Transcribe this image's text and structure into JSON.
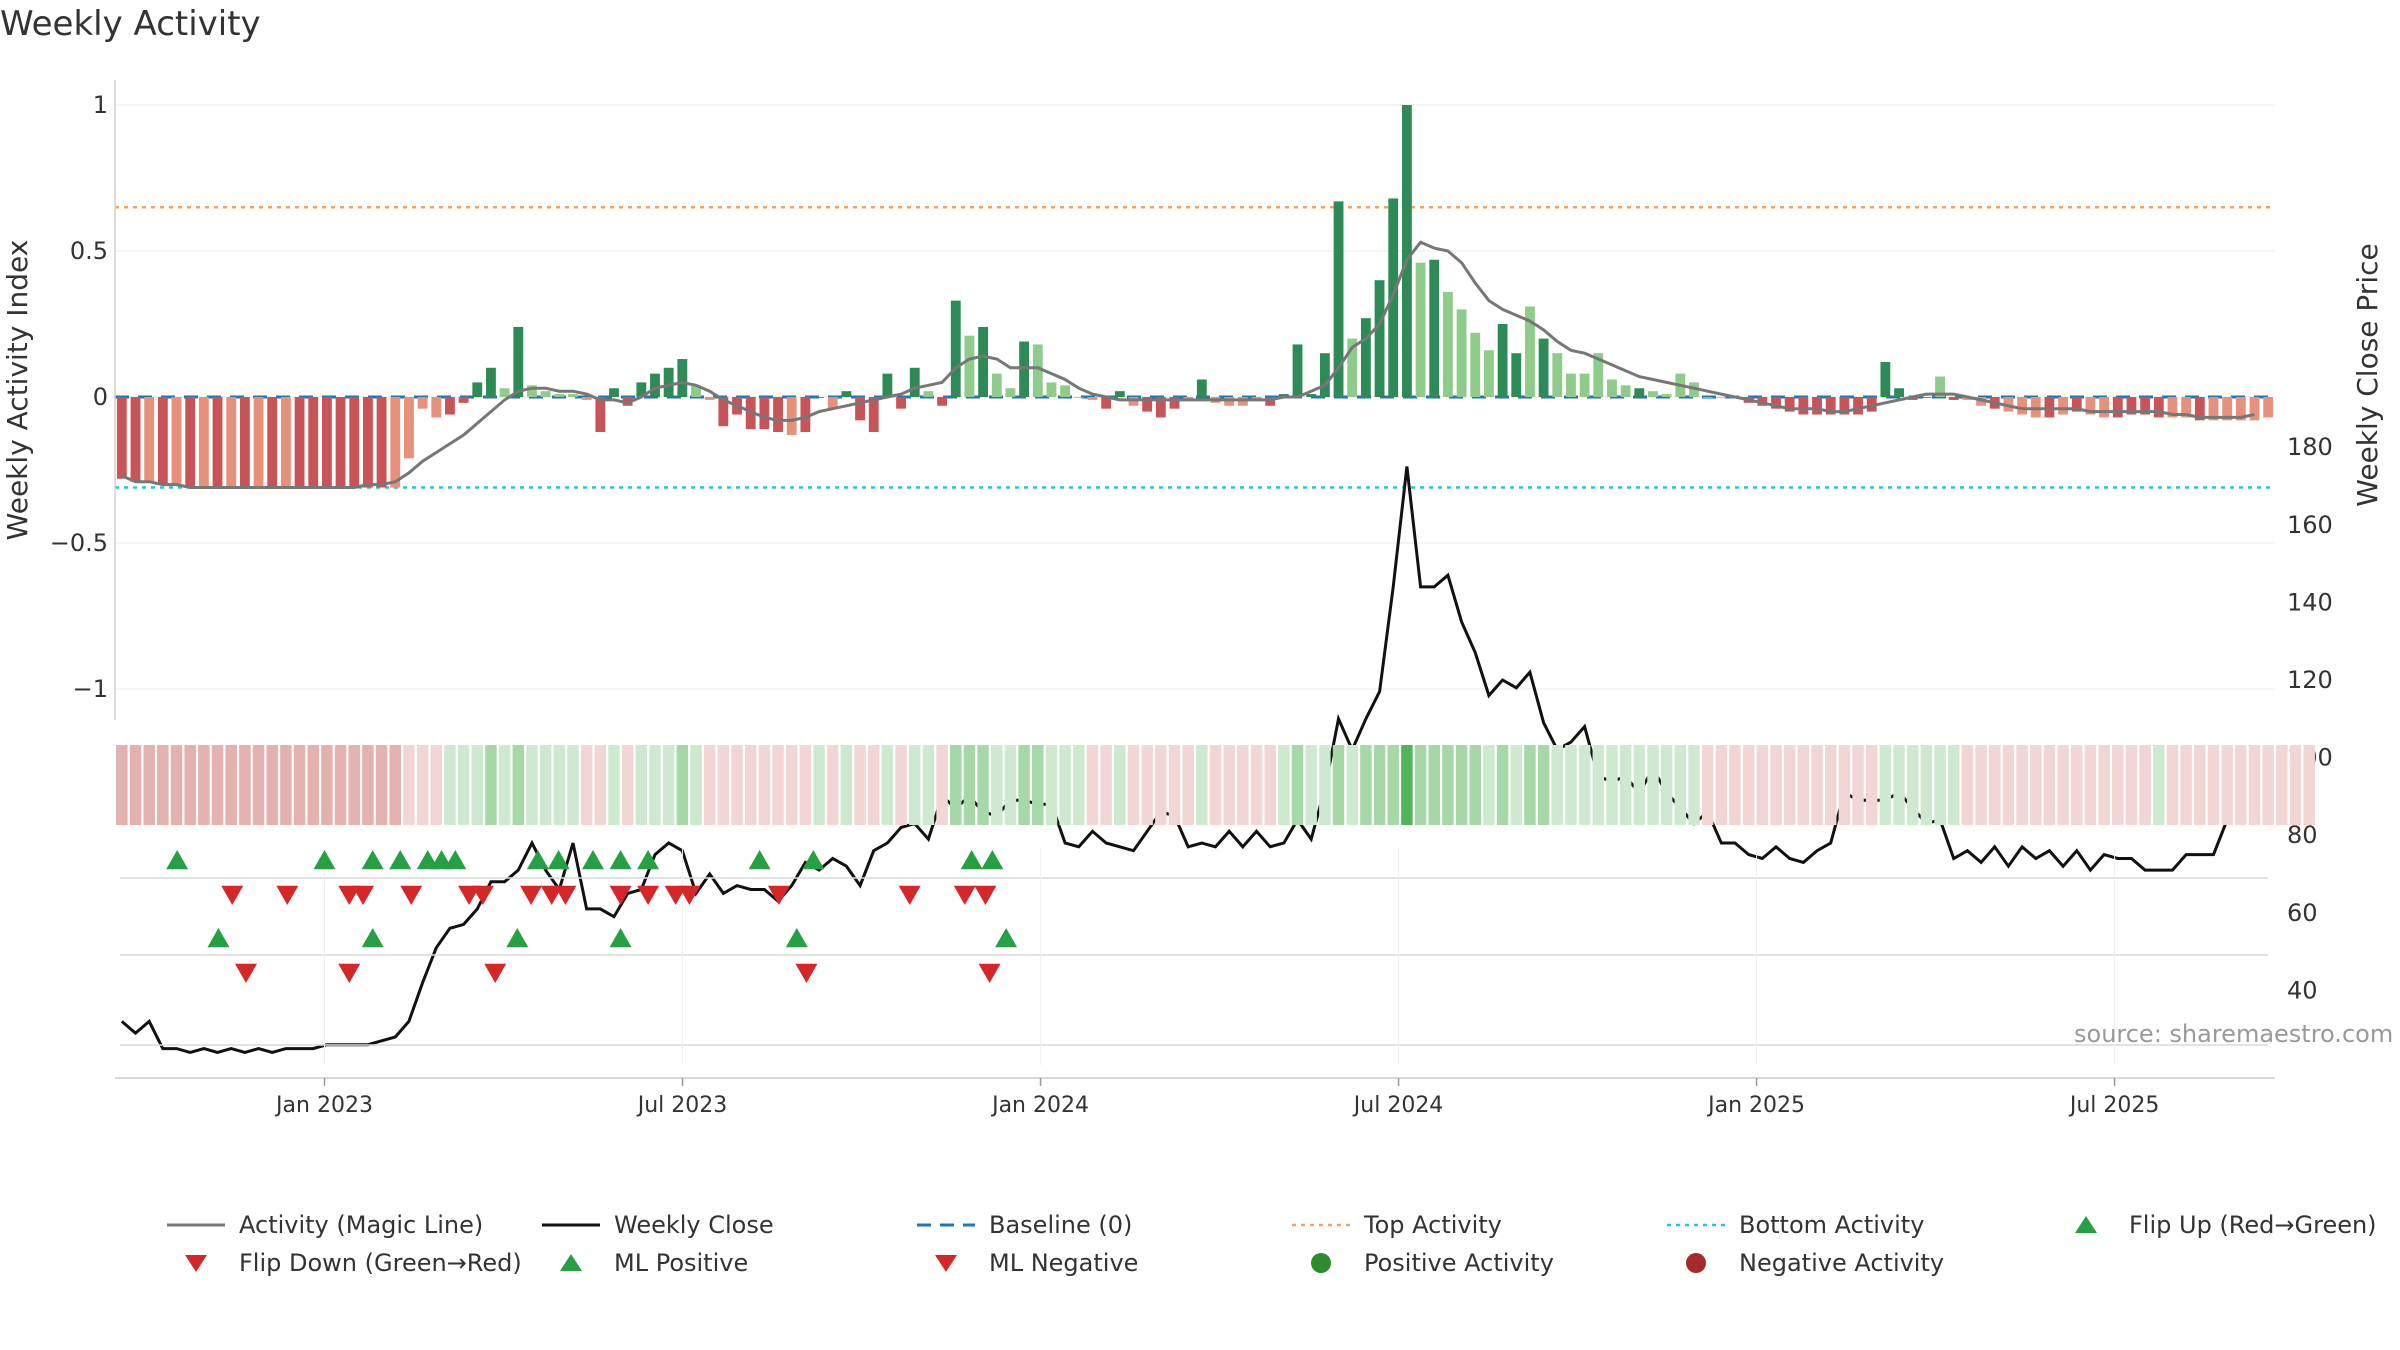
{
  "title": "Weekly Activity",
  "source": "source: sharemaestro.com",
  "colors": {
    "dark_green": "#2e8b57",
    "light_green": "#8fcb8b",
    "dark_red": "#c85458",
    "light_red": "#e8917a",
    "magic_line": "#777777",
    "close_line": "#111111",
    "baseline": "#1f77b4",
    "top_line": "#f4a460",
    "bottom_line": "#26c6da",
    "marker_green": "#27a045",
    "marker_red": "#d62728"
  },
  "legend": [
    {
      "label": "Activity (Magic Line)",
      "icon": "solid-gray-line"
    },
    {
      "label": "Weekly Close",
      "icon": "solid-black-line"
    },
    {
      "label": "Baseline (0)",
      "icon": "dashed-blue-line"
    },
    {
      "label": "Top Activity",
      "icon": "dotted-orange-line"
    },
    {
      "label": "Bottom Activity",
      "icon": "dotted-cyan-line"
    },
    {
      "label": "Flip Up (Red→Green)",
      "icon": "green-up-triangle"
    },
    {
      "label": "Flip Down (Green→Red)",
      "icon": "red-down-triangle"
    },
    {
      "label": "ML Positive",
      "icon": "green-up-triangle"
    },
    {
      "label": "ML Negative",
      "icon": "red-down-triangle"
    },
    {
      "label": "Positive Activity",
      "icon": "green-dot"
    },
    {
      "label": "Negative Activity",
      "icon": "red-dot"
    }
  ],
  "chart_data": {
    "type": "bar",
    "title": "Weekly Activity",
    "ylabel": "Weekly Activity Index",
    "y2label": "Weekly Close Price",
    "ylim": [
      -1.1,
      1.05
    ],
    "y2lim": [
      20,
      185
    ],
    "yticks": [
      -1,
      -0.5,
      0,
      0.5,
      1
    ],
    "ytick_labels": [
      "−1",
      "−0.5",
      "0",
      "0.5",
      "1"
    ],
    "y2ticks": [
      40,
      60,
      80,
      100,
      120,
      140,
      160,
      180
    ],
    "y2tick_labels": [
      "40",
      "60",
      "80",
      "100",
      "120",
      "140",
      "160",
      "180"
    ],
    "xlim": [
      -15.0,
      141.0
    ],
    "x_unit": "weeks since Jan 2023",
    "xticks": [
      0,
      26,
      52,
      78,
      104,
      130
    ],
    "xtick_labels": [
      "Jan 2023",
      "Jul 2023",
      "Jan 2024",
      "Jul 2024",
      "Jan 2025",
      "Jul 2025"
    ],
    "top_activity": 0.65,
    "bottom_activity": -0.31,
    "baseline": 0,
    "activity": [
      -0.28,
      -0.29,
      -0.29,
      -0.3,
      -0.3,
      -0.31,
      -0.31,
      -0.31,
      -0.31,
      -0.31,
      -0.31,
      -0.31,
      -0.31,
      -0.31,
      -0.31,
      -0.31,
      -0.31,
      -0.31,
      -0.31,
      -0.31,
      -0.31,
      -0.21,
      -0.04,
      -0.07,
      -0.06,
      -0.02,
      0.05,
      0.1,
      0.03,
      0.24,
      0.04,
      0.02,
      0.01,
      0.01,
      -0.01,
      -0.12,
      0.03,
      -0.03,
      0.05,
      0.08,
      0.1,
      0.13,
      0.04,
      -0.01,
      -0.1,
      -0.06,
      -0.11,
      -0.11,
      -0.12,
      -0.13,
      -0.12,
      0.0,
      -0.04,
      0.02,
      -0.08,
      -0.12,
      0.08,
      -0.04,
      0.1,
      0.02,
      -0.03,
      0.33,
      0.21,
      0.24,
      0.08,
      0.03,
      0.19,
      0.18,
      0.05,
      0.04,
      0.0,
      -0.01,
      -0.04,
      0.02,
      -0.03,
      -0.05,
      -0.07,
      -0.04,
      -0.01,
      0.06,
      -0.02,
      -0.03,
      -0.03,
      -0.01,
      -0.03,
      0.01,
      0.18,
      0.01,
      0.15,
      0.67,
      0.2,
      0.27,
      0.4,
      0.68,
      1.0,
      0.46,
      0.47,
      0.36,
      0.3,
      0.22,
      0.16,
      0.25,
      0.15,
      0.31,
      0.2,
      0.15,
      0.08,
      0.08,
      0.15,
      0.06,
      0.04,
      0.03,
      0.02,
      0.01,
      0.08,
      0.05,
      0.0,
      0.0,
      0.0,
      -0.02,
      -0.03,
      -0.04,
      -0.05,
      -0.06,
      -0.06,
      -0.06,
      -0.06,
      -0.06,
      -0.05,
      0.12,
      0.03,
      -0.01,
      0.0,
      0.07,
      -0.01,
      -0.01,
      -0.03,
      -0.04,
      -0.05,
      -0.06,
      -0.07,
      -0.07,
      -0.06,
      -0.05,
      -0.06,
      -0.07,
      -0.07,
      -0.06,
      -0.06,
      -0.07,
      -0.07,
      -0.07,
      -0.08,
      -0.08,
      -0.08,
      -0.08,
      -0.08,
      -0.07
    ],
    "activity_strength": [
      "dark",
      "dark",
      "light",
      "dark",
      "light",
      "dark",
      "light",
      "dark",
      "light",
      "dark",
      "light",
      "dark",
      "light",
      "dark",
      "dark",
      "dark",
      "dark",
      "dark",
      "dark",
      "dark",
      "light",
      "light",
      "light",
      "light",
      "dark",
      "dark",
      "dark",
      "dark",
      "light",
      "dark",
      "light",
      "light",
      "light",
      "light",
      "light",
      "dark",
      "dark",
      "dark",
      "dark",
      "dark",
      "dark",
      "dark",
      "light",
      "light",
      "dark",
      "dark",
      "dark",
      "dark",
      "dark",
      "light",
      "dark",
      "dark",
      "light",
      "dark",
      "dark",
      "dark",
      "dark",
      "dark",
      "dark",
      "light",
      "dark",
      "dark",
      "light",
      "dark",
      "light",
      "light",
      "dark",
      "light",
      "light",
      "light",
      "light",
      "light",
      "dark",
      "dark",
      "light",
      "dark",
      "dark",
      "dark",
      "light",
      "dark",
      "light",
      "light",
      "light",
      "light",
      "dark",
      "dark",
      "dark",
      "dark",
      "dark",
      "dark",
      "light",
      "dark",
      "dark",
      "dark",
      "dark",
      "light",
      "dark",
      "light",
      "light",
      "light",
      "light",
      "dark",
      "dark",
      "light",
      "dark",
      "light",
      "light",
      "light",
      "light",
      "light",
      "light",
      "dark",
      "light",
      "light",
      "light",
      "light",
      "light",
      "light",
      "light",
      "dark",
      "dark",
      "dark",
      "dark",
      "dark",
      "dark",
      "dark",
      "dark",
      "dark",
      "dark",
      "dark",
      "dark",
      "dark",
      "dark",
      "light",
      "dark",
      "light",
      "light",
      "dark",
      "light",
      "light",
      "light",
      "dark",
      "light",
      "dark",
      "light",
      "light",
      "dark",
      "dark",
      "dark",
      "dark",
      "light",
      "light",
      "dark",
      "light",
      "light",
      "light",
      "light",
      "light",
      "light",
      "light",
      "dark"
    ],
    "magic_line": [
      -0.27,
      -0.29,
      -0.29,
      -0.3,
      -0.3,
      -0.31,
      -0.31,
      -0.31,
      -0.31,
      -0.31,
      -0.31,
      -0.31,
      -0.31,
      -0.31,
      -0.31,
      -0.31,
      -0.31,
      -0.31,
      -0.3,
      -0.3,
      -0.29,
      -0.26,
      -0.22,
      -0.19,
      -0.16,
      -0.13,
      -0.09,
      -0.05,
      -0.01,
      0.02,
      0.03,
      0.03,
      0.02,
      0.02,
      0.01,
      -0.01,
      -0.01,
      -0.02,
      0.0,
      0.03,
      0.04,
      0.05,
      0.04,
      0.02,
      -0.01,
      -0.03,
      -0.05,
      -0.07,
      -0.08,
      -0.08,
      -0.07,
      -0.05,
      -0.04,
      -0.03,
      -0.02,
      -0.01,
      0.0,
      0.01,
      0.03,
      0.04,
      0.05,
      0.1,
      0.13,
      0.14,
      0.13,
      0.1,
      0.1,
      0.1,
      0.08,
      0.06,
      0.03,
      0.01,
      0.0,
      -0.01,
      -0.01,
      -0.01,
      -0.01,
      -0.01,
      -0.01,
      -0.01,
      -0.01,
      -0.01,
      -0.01,
      -0.01,
      -0.01,
      0.0,
      0.0,
      0.02,
      0.04,
      0.1,
      0.17,
      0.2,
      0.25,
      0.35,
      0.47,
      0.53,
      0.51,
      0.5,
      0.46,
      0.39,
      0.33,
      0.3,
      0.28,
      0.26,
      0.23,
      0.19,
      0.16,
      0.15,
      0.13,
      0.11,
      0.09,
      0.07,
      0.06,
      0.05,
      0.04,
      0.03,
      0.02,
      0.01,
      0.0,
      -0.01,
      -0.02,
      -0.03,
      -0.04,
      -0.04,
      -0.04,
      -0.05,
      -0.05,
      -0.04,
      -0.03,
      -0.02,
      -0.01,
      0.0,
      0.01,
      0.01,
      0.01,
      0.0,
      -0.01,
      -0.02,
      -0.03,
      -0.04,
      -0.04,
      -0.04,
      -0.04,
      -0.04,
      -0.05,
      -0.05,
      -0.05,
      -0.05,
      -0.05,
      -0.05,
      -0.06,
      -0.06,
      -0.07,
      -0.07,
      -0.07,
      -0.07,
      -0.06
    ],
    "weekly_close": [
      32,
      29,
      32,
      25,
      25,
      24,
      25,
      24,
      25,
      24,
      25,
      24,
      25,
      25,
      25,
      26,
      26,
      26,
      26,
      27,
      28,
      32,
      42,
      51,
      56,
      57,
      61,
      68,
      68,
      71,
      78,
      71,
      66,
      78,
      61,
      61,
      59,
      65,
      66,
      75,
      78,
      76,
      65,
      70,
      65,
      67,
      66,
      66,
      63,
      67,
      73,
      71,
      74,
      72,
      67,
      76,
      78,
      82,
      83,
      79,
      90,
      87,
      90,
      86,
      85,
      89,
      89,
      88,
      88,
      78,
      77,
      81,
      78,
      77,
      76,
      81,
      86,
      85,
      77,
      78,
      77,
      81,
      77,
      81,
      77,
      78,
      84,
      79,
      92,
      110,
      102,
      110,
      117,
      144,
      175,
      144,
      144,
      147,
      135,
      127,
      116,
      120,
      118,
      122,
      109,
      102,
      104,
      108,
      95,
      94,
      95,
      91,
      97,
      91,
      87,
      83,
      86,
      78,
      78,
      75,
      74,
      77,
      74,
      73,
      76,
      78,
      91,
      89,
      89,
      89,
      91,
      87,
      83,
      84,
      74,
      76,
      73,
      77,
      72,
      77,
      74,
      76,
      72,
      76,
      71,
      75,
      74,
      74,
      71,
      71,
      71,
      75,
      75,
      75,
      84
    ],
    "heatmap_strip": [
      "strong-negative",
      "strong-negative",
      "strong-negative",
      "strong-negative",
      "strong-negative",
      "strong-negative",
      "strong-negative",
      "strong-negative",
      "strong-negative",
      "strong-negative",
      "strong-negative",
      "strong-negative",
      "strong-negative",
      "strong-negative",
      "strong-negative",
      "strong-negative",
      "strong-negative",
      "strong-negative",
      "strong-negative",
      "strong-negative",
      "strong-negative",
      "weak-negative",
      "weak-negative",
      "weak-negative",
      "weak-positive",
      "weak-positive",
      "weak-positive",
      "positive",
      "weak-positive",
      "positive",
      "weak-positive",
      "weak-positive",
      "weak-positive",
      "weak-positive",
      "weak-negative",
      "weak-negative",
      "weak-positive",
      "weak-negative",
      "weak-positive",
      "weak-positive",
      "weak-positive",
      "positive",
      "weak-positive",
      "weak-negative",
      "weak-negative",
      "weak-negative",
      "weak-negative",
      "weak-negative",
      "weak-negative",
      "weak-negative",
      "weak-negative",
      "weak-positive",
      "weak-negative",
      "weak-positive",
      "weak-negative",
      "weak-negative",
      "weak-positive",
      "weak-negative",
      "weak-positive",
      "weak-positive",
      "weak-negative",
      "positive",
      "positive",
      "positive",
      "weak-positive",
      "weak-positive",
      "positive",
      "positive",
      "weak-positive",
      "weak-positive",
      "weak-positive",
      "weak-negative",
      "weak-negative",
      "weak-positive",
      "weak-negative",
      "weak-negative",
      "weak-negative",
      "weak-negative",
      "weak-negative",
      "weak-positive",
      "weak-negative",
      "weak-negative",
      "weak-negative",
      "weak-negative",
      "weak-negative",
      "weak-positive",
      "positive",
      "weak-positive",
      "weak-positive",
      "positive",
      "weak-positive",
      "positive",
      "positive",
      "positive",
      "strong-positive",
      "positive",
      "positive",
      "positive",
      "positive",
      "positive",
      "weak-positive",
      "positive",
      "weak-positive",
      "positive",
      "positive",
      "weak-positive",
      "weak-positive",
      "weak-positive",
      "weak-positive",
      "weak-positive",
      "weak-positive",
      "weak-positive",
      "weak-positive",
      "weak-positive",
      "weak-positive",
      "weak-positive",
      "weak-negative",
      "weak-negative",
      "weak-negative",
      "weak-negative",
      "weak-negative",
      "weak-negative",
      "weak-negative",
      "weak-negative",
      "weak-negative",
      "weak-negative",
      "weak-negative",
      "weak-negative",
      "weak-negative",
      "weak-positive",
      "weak-positive",
      "weak-positive",
      "weak-positive",
      "weak-positive",
      "weak-positive",
      "weak-negative",
      "weak-negative",
      "weak-negative",
      "weak-negative",
      "weak-negative",
      "weak-negative",
      "weak-negative",
      "weak-negative",
      "weak-negative",
      "weak-negative",
      "weak-negative",
      "weak-negative",
      "weak-negative",
      "weak-negative",
      "weak-positive",
      "weak-negative",
      "weak-negative",
      "weak-negative",
      "weak-negative",
      "weak-negative",
      "weak-negative",
      "weak-negative",
      "weak-negative",
      "weak-negative",
      "weak-negative",
      "weak-negative"
    ],
    "flip_up": [
      -10.7,
      0.0,
      3.5,
      5.5,
      7.5,
      8.5,
      9.5,
      15.5,
      17.0,
      19.5,
      21.5,
      23.5,
      31.6,
      35.5,
      48.5,
      47.0
    ],
    "flip_down": [
      -6.7,
      -2.7,
      1.8,
      2.8,
      6.3,
      10.5,
      11.5,
      15.0,
      16.5,
      17.5,
      21.5,
      23.5,
      25.5,
      26.5,
      33.0,
      42.5,
      46.5,
      48.0
    ],
    "ml_positive": [
      -7.7,
      3.5,
      14.0,
      21.5,
      34.3,
      49.5
    ],
    "ml_negative": [
      -5.7,
      1.8,
      12.4,
      35.0,
      48.3
    ]
  }
}
